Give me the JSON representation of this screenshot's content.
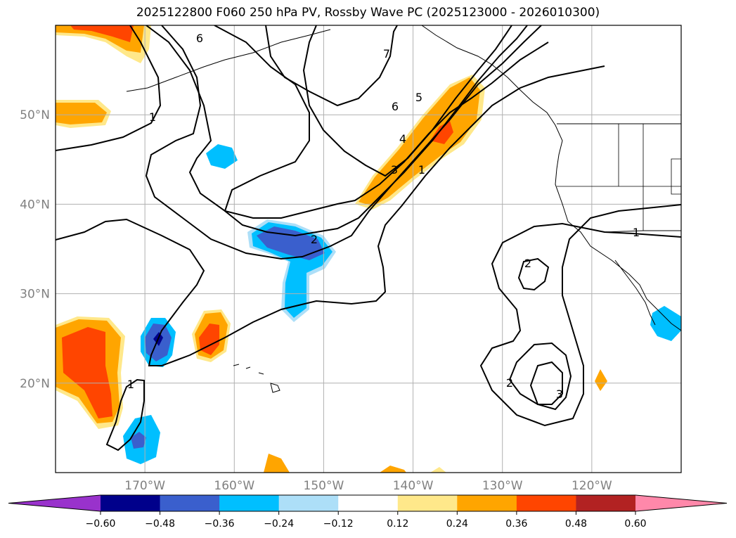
{
  "title": "2025122800 F060 250 hPa PV, Rossby Wave PC (2025123000 - 2026010300)",
  "map": {
    "lon_range": [
      -180,
      -110
    ],
    "lat_range": [
      10,
      60
    ],
    "lon_ticks": [
      {
        "value": -170,
        "label": "170°W"
      },
      {
        "value": -160,
        "label": "160°W"
      },
      {
        "value": -150,
        "label": "150°W"
      },
      {
        "value": -140,
        "label": "140°W"
      },
      {
        "value": -130,
        "label": "130°W"
      },
      {
        "value": -120,
        "label": "120°W"
      }
    ],
    "lat_ticks": [
      {
        "value": 20,
        "label": "20°N"
      },
      {
        "value": 30,
        "label": "30°N"
      },
      {
        "value": 40,
        "label": "40°N"
      },
      {
        "value": 50,
        "label": "50°N"
      }
    ]
  },
  "colorbar": {
    "levels": [
      -0.6,
      -0.48,
      -0.36,
      -0.24,
      -0.12,
      0.12,
      0.24,
      0.36,
      0.48,
      0.6
    ],
    "tick_labels": [
      "−0.60",
      "−0.48",
      "−0.36",
      "−0.24",
      "−0.12",
      "0.12",
      "0.24",
      "0.36",
      "0.48",
      "0.60"
    ],
    "colors": [
      "#9932CC",
      "#00008B",
      "#3A5FCD",
      "#00BFFF",
      "#ADDFF8",
      "#FFFFFF",
      "#FFE88A",
      "#FFA500",
      "#FF4500",
      "#B22222",
      "#FF88AA"
    ]
  },
  "contour_labels": [
    "6",
    "7",
    "6",
    "5",
    "4",
    "3",
    "1",
    "1",
    "2",
    "1",
    "2",
    "2",
    "3",
    "1"
  ]
}
